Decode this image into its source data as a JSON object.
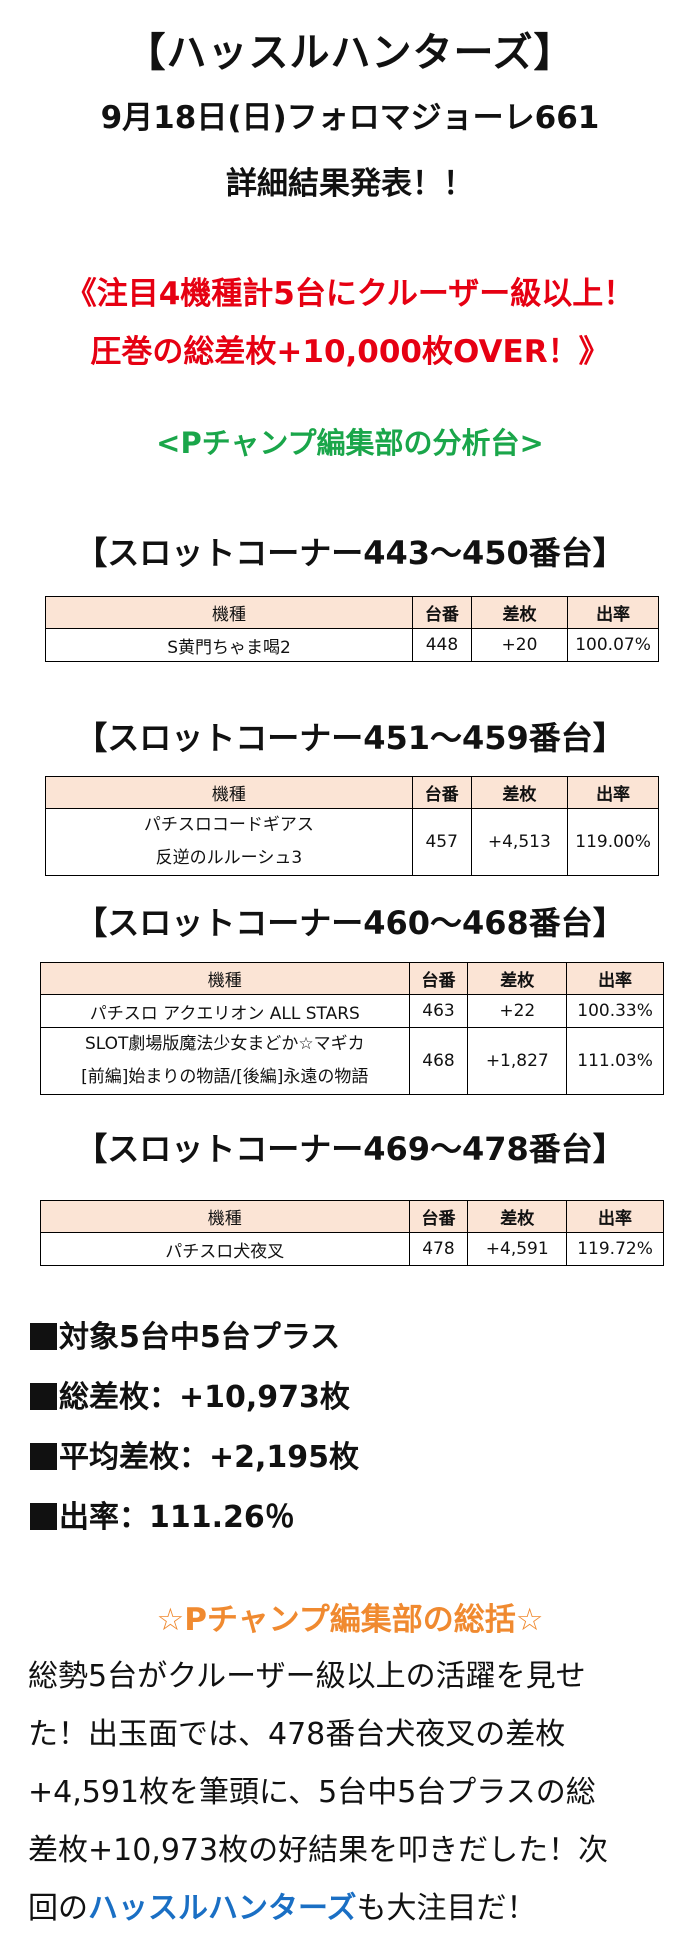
{
  "header": {
    "title": "【ハッスルハンターズ】",
    "date_line": "9月18日(日)フォロマジョーレ661",
    "announce": "詳細結果発表！！",
    "highlight_line1": "《注目4機種計5台にクルーザー級以上！",
    "highlight_line2": "圧巻の総差枚+10,000枚OVER！》",
    "section_heading": "<Pチャンプ編集部の分析台>"
  },
  "columns": {
    "machine": "機種",
    "number": "台番",
    "diff": "差枚",
    "rate": "出率"
  },
  "sections": [
    {
      "title": "【スロットコーナー443～450番台】",
      "rows": [
        {
          "machine_l1": "S黄門ちゃま喝2",
          "machine_l2": "",
          "number": "448",
          "diff": "+20",
          "rate": "100.07%"
        }
      ]
    },
    {
      "title": "【スロットコーナー451～459番台】",
      "rows": [
        {
          "machine_l1": "パチスロコードギアス",
          "machine_l2": "反逆のルルーシュ3",
          "number": "457",
          "diff": "+4,513",
          "rate": "119.00%"
        }
      ]
    },
    {
      "title": "【スロットコーナー460～468番台】",
      "rows": [
        {
          "machine_l1": "パチスロ アクエリオン ALL STARS",
          "machine_l2": "",
          "number": "463",
          "diff": "+22",
          "rate": "100.33%"
        },
        {
          "machine_l1": "SLOT劇場版魔法少女まどか☆マギカ",
          "machine_l2": "[前編]始まりの物語/[後編]永遠の物語",
          "number": "468",
          "diff": "+1,827",
          "rate": "111.03%"
        }
      ]
    },
    {
      "title": "【スロットコーナー469～478番台】",
      "rows": [
        {
          "machine_l1": "パチスロ犬夜叉",
          "machine_l2": "",
          "number": "478",
          "diff": "+4,591",
          "rate": "119.72%"
        }
      ]
    }
  ],
  "summary": {
    "plus_count": "対象5台中5台プラス",
    "total_diff": "総差枚：+10,973枚",
    "avg_diff": "平均差枚：+2,195枚",
    "rate": "出率：111.26％"
  },
  "conclusion": {
    "heading": "☆Pチャンプ編集部の総括☆",
    "line1": "総勢5台がクルーザー級以上の活躍を見せ",
    "line2": "た！出玉面では、478番台犬夜叉の差枚",
    "line3": "+4,591枚を筆頭に、5台中5台プラスの総",
    "line4": "差枚+10,973枚の好結果を叩きだした！次",
    "line5_pre": "回の",
    "line5_brand": "ハッスルハンターズ",
    "line5_post": "も大注目だ！"
  },
  "colors": {
    "red": "#e60012",
    "green": "#1aa64a",
    "orange": "#f08a30",
    "blue": "#1a6fc4",
    "table_header": "#fbe4d5"
  }
}
